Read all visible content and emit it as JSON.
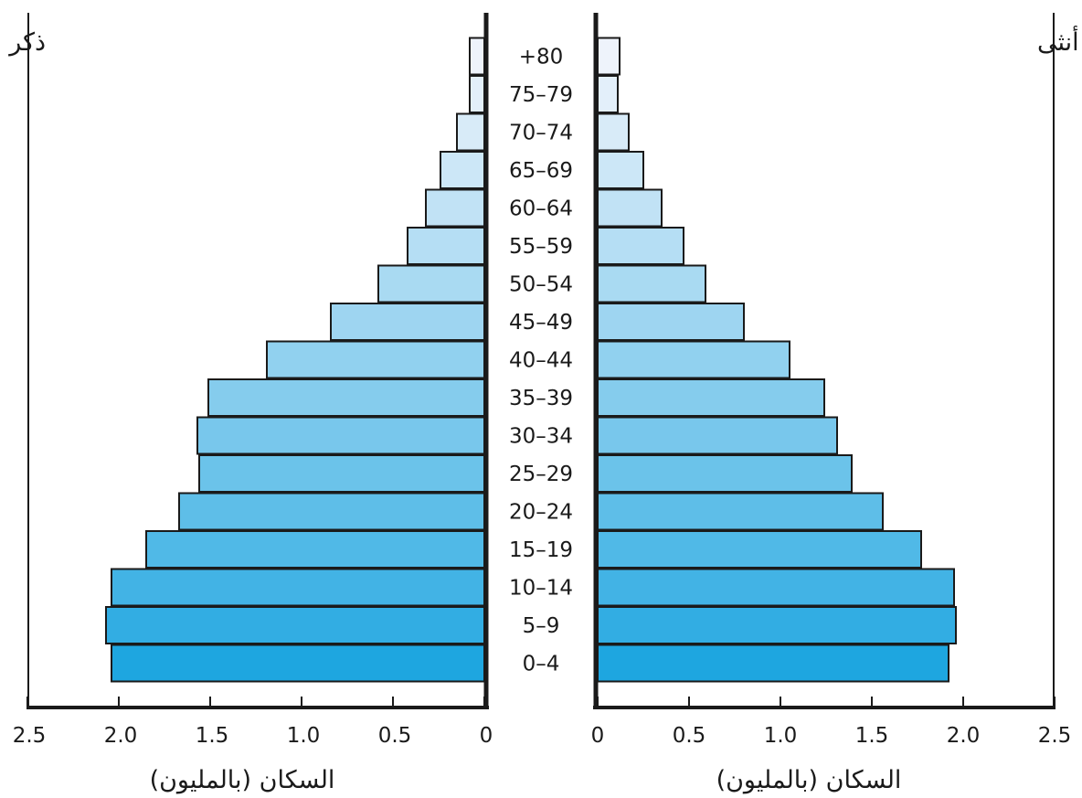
{
  "chart_data": {
    "type": "bar",
    "subtype": "population-pyramid",
    "orientation": "horizontal",
    "categories": [
      "0–4",
      "5–9",
      "10–14",
      "15–19",
      "20–24",
      "25–29",
      "30–34",
      "35–39",
      "40–44",
      "45–49",
      "50–54",
      "55–59",
      "60–64",
      "65–69",
      "70–74",
      "75–79",
      "+80"
    ],
    "series": [
      {
        "name": "ذكر",
        "values": [
          2.04,
          2.07,
          2.04,
          1.85,
          1.67,
          1.56,
          1.57,
          1.51,
          1.19,
          0.84,
          0.58,
          0.42,
          0.32,
          0.24,
          0.15,
          0.08,
          0.08
        ]
      },
      {
        "name": "أنثى",
        "values": [
          1.92,
          1.96,
          1.95,
          1.77,
          1.56,
          1.39,
          1.31,
          1.24,
          1.05,
          0.8,
          0.59,
          0.47,
          0.35,
          0.25,
          0.17,
          0.11,
          0.12
        ]
      }
    ],
    "xlabel_left": "السكان (بالمليون)",
    "xlabel_right": "السكان (بالمليون)",
    "xlim": [
      0,
      2.5
    ],
    "xticks": [
      "0",
      "0.5",
      "1.0",
      "1.5",
      "2.0",
      "2.5"
    ],
    "grid": false,
    "colors": {
      "bar_bottom": "#1ea6e0",
      "bar_top": "#eef3fb",
      "stroke": "#1a1a1a"
    }
  }
}
